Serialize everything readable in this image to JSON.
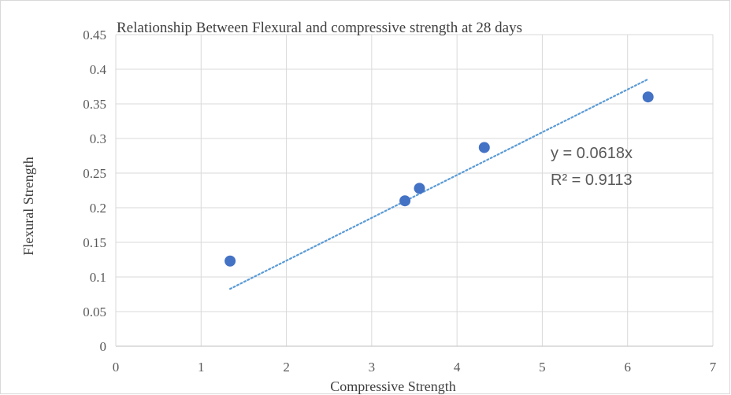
{
  "chart_data": {
    "type": "scatter",
    "title": "Relationship  Between Flexural and compressive strength  at 28 days",
    "xlabel": "Compressive Strength",
    "ylabel": "Flexural Strength",
    "xlim": [
      0,
      7
    ],
    "ylim": [
      0,
      0.45
    ],
    "x_ticks": [
      0,
      1,
      2,
      3,
      4,
      5,
      6,
      7
    ],
    "y_ticks": [
      0,
      0.05,
      0.1,
      0.15,
      0.2,
      0.25,
      0.3,
      0.35,
      0.4,
      0.45
    ],
    "x_tick_labels": [
      "0",
      "1",
      "2",
      "3",
      "4",
      "5",
      "6",
      "7"
    ],
    "y_tick_labels": [
      "0",
      "0.05",
      "0.1",
      "0.15",
      "0.2",
      "0.25",
      "0.3",
      "0.35",
      "0.4",
      "0.45"
    ],
    "grid": true,
    "points": [
      {
        "x": 1.34,
        "y": 0.123
      },
      {
        "x": 3.39,
        "y": 0.21
      },
      {
        "x": 3.56,
        "y": 0.228
      },
      {
        "x": 4.32,
        "y": 0.287
      },
      {
        "x": 6.24,
        "y": 0.36
      }
    ],
    "trendline": {
      "type": "linear-through-origin",
      "slope": 0.0618,
      "x_range": [
        1.34,
        6.24
      ],
      "equation": "y = 0.0618x",
      "r_squared": "R² = 0.9113",
      "style": "dotted"
    },
    "colors": {
      "point": "#4472c4",
      "trendline": "#5b9bd5",
      "grid": "#d9d9d9",
      "text": "#595959"
    }
  }
}
